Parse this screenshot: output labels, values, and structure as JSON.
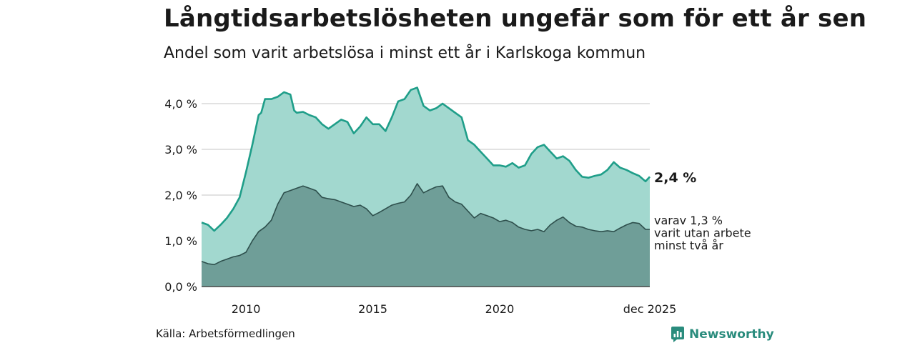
{
  "title": "Långtidsarbetslösheten ungefär som för ett år sen",
  "subtitle": "Andel som varit arbetslösa i minst ett år i Karlskoga kommun",
  "source": "Källa: Arbetsförmedlingen",
  "brand": "Newsworthy",
  "colors": {
    "total_fill": "#a2d8cf",
    "total_line": "#1f9e89",
    "long_fill": "#6f9e98",
    "long_line": "#2e4f4c",
    "grid": "#d9d9d9",
    "brand": "#2a8c7d"
  },
  "chart_data": {
    "type": "area",
    "title": "",
    "xlabel": "",
    "ylabel": "",
    "xlim": [
      2008.25,
      2025.92
    ],
    "ylim": [
      0,
      4.4
    ],
    "x_ticks": [
      2010,
      2015,
      2020,
      2025.92
    ],
    "x_tick_labels": [
      "2010",
      "2015",
      "2020",
      "dec 2025"
    ],
    "y_ticks": [
      0,
      1,
      2,
      3,
      4
    ],
    "y_tick_labels": [
      "0,0 %",
      "1,0 %",
      "2,0 %",
      "3,0 %",
      "4,0 %"
    ],
    "grid": true,
    "end_labels": {
      "total": "2,4 %",
      "long_lines": [
        "varav 1,3 %",
        "varit utan arbete",
        "minst två år"
      ]
    },
    "series": [
      {
        "key": "total",
        "points": [
          [
            2008.25,
            1.4
          ],
          [
            2008.5,
            1.35
          ],
          [
            2008.75,
            1.22
          ],
          [
            2009.0,
            1.35
          ],
          [
            2009.25,
            1.5
          ],
          [
            2009.5,
            1.7
          ],
          [
            2009.75,
            1.95
          ],
          [
            2010.0,
            2.5
          ],
          [
            2010.25,
            3.1
          ],
          [
            2010.5,
            3.75
          ],
          [
            2010.6,
            3.8
          ],
          [
            2010.75,
            4.1
          ],
          [
            2011.0,
            4.1
          ],
          [
            2011.25,
            4.15
          ],
          [
            2011.5,
            4.25
          ],
          [
            2011.75,
            4.2
          ],
          [
            2011.9,
            3.85
          ],
          [
            2012.0,
            3.8
          ],
          [
            2012.25,
            3.82
          ],
          [
            2012.5,
            3.75
          ],
          [
            2012.75,
            3.7
          ],
          [
            2013.0,
            3.55
          ],
          [
            2013.25,
            3.45
          ],
          [
            2013.5,
            3.55
          ],
          [
            2013.75,
            3.65
          ],
          [
            2014.0,
            3.6
          ],
          [
            2014.25,
            3.35
          ],
          [
            2014.5,
            3.5
          ],
          [
            2014.75,
            3.7
          ],
          [
            2015.0,
            3.55
          ],
          [
            2015.25,
            3.55
          ],
          [
            2015.5,
            3.4
          ],
          [
            2015.75,
            3.7
          ],
          [
            2016.0,
            4.05
          ],
          [
            2016.25,
            4.1
          ],
          [
            2016.5,
            4.3
          ],
          [
            2016.75,
            4.35
          ],
          [
            2017.0,
            3.95
          ],
          [
            2017.25,
            3.85
          ],
          [
            2017.5,
            3.9
          ],
          [
            2017.75,
            4.0
          ],
          [
            2018.0,
            3.9
          ],
          [
            2018.25,
            3.8
          ],
          [
            2018.5,
            3.7
          ],
          [
            2018.75,
            3.2
          ],
          [
            2019.0,
            3.1
          ],
          [
            2019.25,
            2.95
          ],
          [
            2019.5,
            2.8
          ],
          [
            2019.75,
            2.65
          ],
          [
            2020.0,
            2.65
          ],
          [
            2020.25,
            2.62
          ],
          [
            2020.5,
            2.7
          ],
          [
            2020.75,
            2.6
          ],
          [
            2021.0,
            2.65
          ],
          [
            2021.25,
            2.9
          ],
          [
            2021.5,
            3.05
          ],
          [
            2021.75,
            3.1
          ],
          [
            2022.0,
            2.95
          ],
          [
            2022.25,
            2.8
          ],
          [
            2022.5,
            2.85
          ],
          [
            2022.75,
            2.75
          ],
          [
            2023.0,
            2.55
          ],
          [
            2023.25,
            2.4
          ],
          [
            2023.5,
            2.38
          ],
          [
            2023.75,
            2.42
          ],
          [
            2024.0,
            2.45
          ],
          [
            2024.25,
            2.55
          ],
          [
            2024.5,
            2.72
          ],
          [
            2024.75,
            2.6
          ],
          [
            2025.0,
            2.55
          ],
          [
            2025.25,
            2.48
          ],
          [
            2025.5,
            2.42
          ],
          [
            2025.75,
            2.3
          ],
          [
            2025.92,
            2.4
          ]
        ]
      },
      {
        "key": "long",
        "points": [
          [
            2008.25,
            0.55
          ],
          [
            2008.5,
            0.5
          ],
          [
            2008.75,
            0.48
          ],
          [
            2009.0,
            0.55
          ],
          [
            2009.25,
            0.6
          ],
          [
            2009.5,
            0.65
          ],
          [
            2009.75,
            0.68
          ],
          [
            2010.0,
            0.75
          ],
          [
            2010.25,
            1.0
          ],
          [
            2010.5,
            1.2
          ],
          [
            2010.75,
            1.3
          ],
          [
            2011.0,
            1.45
          ],
          [
            2011.25,
            1.8
          ],
          [
            2011.5,
            2.05
          ],
          [
            2011.75,
            2.1
          ],
          [
            2012.0,
            2.15
          ],
          [
            2012.25,
            2.2
          ],
          [
            2012.5,
            2.15
          ],
          [
            2012.75,
            2.1
          ],
          [
            2013.0,
            1.95
          ],
          [
            2013.25,
            1.92
          ],
          [
            2013.5,
            1.9
          ],
          [
            2013.75,
            1.85
          ],
          [
            2014.0,
            1.8
          ],
          [
            2014.25,
            1.75
          ],
          [
            2014.5,
            1.78
          ],
          [
            2014.75,
            1.7
          ],
          [
            2015.0,
            1.55
          ],
          [
            2015.25,
            1.62
          ],
          [
            2015.5,
            1.7
          ],
          [
            2015.75,
            1.78
          ],
          [
            2016.0,
            1.82
          ],
          [
            2016.25,
            1.85
          ],
          [
            2016.5,
            2.0
          ],
          [
            2016.75,
            2.25
          ],
          [
            2017.0,
            2.05
          ],
          [
            2017.25,
            2.12
          ],
          [
            2017.5,
            2.18
          ],
          [
            2017.75,
            2.2
          ],
          [
            2018.0,
            1.95
          ],
          [
            2018.25,
            1.85
          ],
          [
            2018.5,
            1.8
          ],
          [
            2018.75,
            1.65
          ],
          [
            2019.0,
            1.5
          ],
          [
            2019.25,
            1.6
          ],
          [
            2019.5,
            1.55
          ],
          [
            2019.75,
            1.5
          ],
          [
            2020.0,
            1.42
          ],
          [
            2020.25,
            1.45
          ],
          [
            2020.5,
            1.4
          ],
          [
            2020.75,
            1.3
          ],
          [
            2021.0,
            1.25
          ],
          [
            2021.25,
            1.22
          ],
          [
            2021.5,
            1.25
          ],
          [
            2021.75,
            1.2
          ],
          [
            2022.0,
            1.35
          ],
          [
            2022.25,
            1.45
          ],
          [
            2022.5,
            1.52
          ],
          [
            2022.75,
            1.4
          ],
          [
            2023.0,
            1.32
          ],
          [
            2023.25,
            1.3
          ],
          [
            2023.5,
            1.25
          ],
          [
            2023.75,
            1.22
          ],
          [
            2024.0,
            1.2
          ],
          [
            2024.25,
            1.22
          ],
          [
            2024.5,
            1.2
          ],
          [
            2024.75,
            1.28
          ],
          [
            2025.0,
            1.35
          ],
          [
            2025.25,
            1.4
          ],
          [
            2025.5,
            1.38
          ],
          [
            2025.75,
            1.25
          ],
          [
            2025.92,
            1.25
          ]
        ]
      }
    ]
  }
}
